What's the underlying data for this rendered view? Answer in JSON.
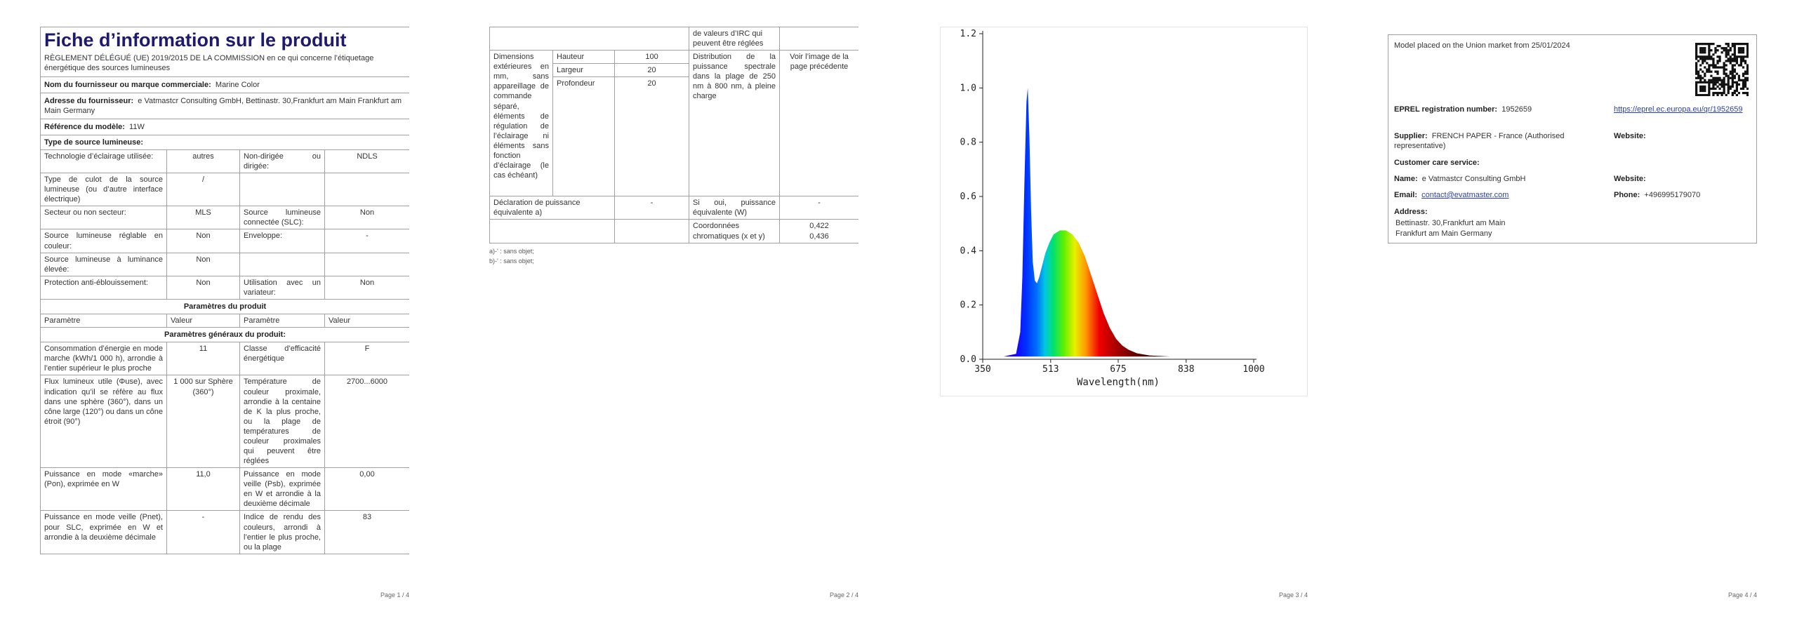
{
  "page1": {
    "title": "Fiche d’information sur le produit",
    "subtitle": "RÈGLEMENT DÉLÉGUÉ (UE) 2019/2015 DE LA COMMISSION en ce qui concerne l’étiquetage énergétique des sources lumineuses",
    "supplier_rows": [
      [
        "Nom du fournisseur ou marque commerciale:",
        "Marine Color"
      ],
      [
        "Adresse du fournisseur:",
        "e Vatmastcr Consulting GmbH, Bettinastr. 30,Frankfurt am Main Frankfurt am Main Germany"
      ],
      [
        "Référence du modèle:",
        "11W"
      ]
    ],
    "type_heading": "Type de source lumineuse:",
    "type_rows": [
      [
        "Technologie d’éclairage utilisée:",
        "autres",
        "Non-dirigée ou dirigée:",
        "NDLS"
      ],
      [
        "Type de culot de la source lumineuse (ou d’autre interface électrique)",
        "/"
      ],
      [
        "Secteur ou non secteur:",
        "MLS",
        "Source lumineuse connectée (SLC):",
        "Non"
      ],
      [
        "Source lumineuse réglable en couleur:",
        "Non",
        "Enveloppe:",
        "-"
      ],
      [
        "Source lumineuse à luminance élevée:",
        "Non"
      ],
      [
        "Protection anti-éblouissement:",
        "Non",
        "Utilisation avec un variateur:",
        "Non"
      ]
    ],
    "params_heading": "Paramètres du produit",
    "column_headers": [
      "Paramètre",
      "Valeur",
      "Paramètre",
      "Valeur"
    ],
    "general_heading": "Paramètres généraux du produit:",
    "param_rows": [
      [
        "Consommation d’énergie en mode marche (kWh/1 000 h), arrondie à l’entier supérieur le plus proche",
        "11",
        "Classe d’efficacité énergétique",
        "F"
      ],
      [
        "Flux lumineux utile (Φuse), avec indication qu’il se réfère au flux dans une sphère (360°), dans un cône large (120°) ou dans un cône étroit (90°)",
        "1 000 sur Sphère (360°)",
        "Température de couleur proximale, arrondie à la centaine de K la plus proche, ou la plage de températures de couleur proximales qui peuvent être réglées",
        "2700...6000"
      ],
      [
        "Puissance en mode «marche» (Pon), exprimée en W",
        "11,0",
        "Puissance en mode veille (Psb), exprimée en W et arrondie à la deuxième décimale",
        "0,00"
      ],
      [
        "Puissance en mode veille (Pnet), pour SLC, exprimée en W et arrondie à la deuxième décimale",
        "-",
        "Indice de rendu des couleurs, arrondi à l’entier le plus proche, ou la plage",
        "83"
      ]
    ]
  },
  "page2": {
    "continuation": "de valeurs d’IRC qui peuvent être réglées",
    "dimensions_label": "Dimensions extérieures en mm, sans appareillage de commande séparé, éléments de régulation de l’éclairage ni éléments sans fonction d’éclairage (le cas échéant)",
    "dimensions": [
      [
        "Hauteur",
        "100"
      ],
      [
        "Largeur",
        "20"
      ],
      [
        "Profondeur",
        "20"
      ]
    ],
    "spectral_label": "Distribution de la puissance spectrale dans la plage de 250 nm à 800 nm, à pleine charge",
    "spectral_value": "Voir l’image de la page précédente",
    "equivalent_label": "Déclaration de puissance équivalente a)",
    "equivalent_value": "-",
    "equivalent_w_label": "Si oui, puissance équivalente (W)",
    "equivalent_w_value": "-",
    "chromaticity_label": "Coordonnées chromatiques (x et y)",
    "chromaticity_values": [
      "0,422",
      "0,436"
    ],
    "footnotes": [
      "a)-' : sans objet;",
      "b)-' : sans objet;"
    ]
  },
  "chart_data": {
    "type": "area",
    "x_label": "Wavelength(nm)",
    "x": [
      350,
      400,
      430,
      440,
      445,
      450,
      455,
      458,
      462,
      466,
      470,
      475,
      480,
      485,
      490,
      500,
      510,
      520,
      535,
      550,
      565,
      580,
      595,
      610,
      625,
      640,
      655,
      670,
      685,
      700,
      720,
      750,
      800,
      900,
      1000
    ],
    "values": [
      0.01,
      0.01,
      0.02,
      0.1,
      0.3,
      0.65,
      0.95,
      1.0,
      0.82,
      0.55,
      0.36,
      0.29,
      0.28,
      0.3,
      0.33,
      0.39,
      0.43,
      0.46,
      0.475,
      0.475,
      0.46,
      0.43,
      0.38,
      0.31,
      0.24,
      0.17,
      0.115,
      0.075,
      0.05,
      0.035,
      0.022,
      0.014,
      0.01,
      0.01,
      0.01
    ],
    "xlim": [
      350,
      1000
    ],
    "xticks": [
      350,
      513,
      675,
      838,
      1000
    ],
    "ylim": [
      0,
      1.2
    ],
    "yticks": [
      {
        "value": 0,
        "label": "0.0"
      },
      {
        "value": 0.2,
        "label": "0.2"
      },
      {
        "value": 0.4,
        "label": "0.4"
      },
      {
        "value": 0.6,
        "label": "0.6"
      },
      {
        "value": 0.8,
        "label": "0.8"
      },
      {
        "value": 1,
        "label": "1.0"
      },
      {
        "value": 1.2,
        "label": "1.2"
      }
    ]
  },
  "page4": {
    "placed": "Model placed on the Union market from 25/01/2024",
    "eprel_label": "EPREL registration number:",
    "eprel_value": "1952659",
    "eprel_link": "https://eprel.ec.europa.eu/qr/1952659",
    "supplier_label": "Supplier:",
    "supplier_value": "FRENCH PAPER - France (Authorised representative)",
    "website_label": "Website:",
    "customer_care": "Customer care service:",
    "name_label": "Name:",
    "name_value": "e Vatmastcr Consulting GmbH",
    "email_label": "Email:",
    "email_value": "contact@evatmaster.com",
    "phone_label": "Phone:",
    "phone_value": "+496995179070",
    "address_label": "Address:",
    "address_lines": [
      "Bettinastr. 30,Frankfurt am Main",
      "Frankfurt am Main Germany"
    ]
  },
  "page_numbers": [
    "Page 1 / 4",
    "Page 2 / 4",
    "Page 3 / 4",
    "Page 4 / 4"
  ]
}
